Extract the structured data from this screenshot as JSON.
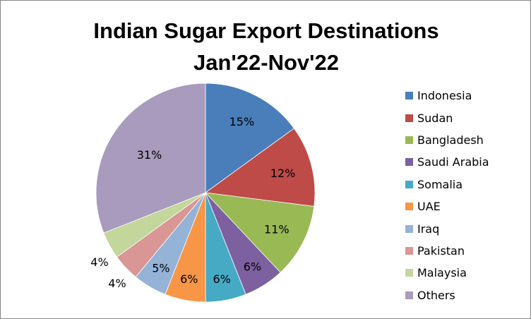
{
  "chart_data": {
    "type": "pie",
    "title": [
      "Indian Sugar Export Destinations",
      "Jan'22-Nov'22"
    ],
    "categories": [
      "Indonesia",
      "Sudan",
      "Bangladesh",
      "Saudi Arabia",
      "Somalia",
      "UAE",
      "Iraq",
      "Pakistan",
      "Malaysia",
      "Others"
    ],
    "values": [
      15,
      12,
      11,
      6,
      6,
      6,
      5,
      4,
      4,
      31
    ],
    "data_labels": [
      "15%",
      "12%",
      "11%",
      "6%",
      "6%",
      "6%",
      "5%",
      "4%",
      "4%",
      "31%"
    ],
    "colors": [
      "#4A7EBB",
      "#BE4B48",
      "#98B954",
      "#7D60A0",
      "#46AAC5",
      "#F79646",
      "#95B3D7",
      "#D99694",
      "#C3D69B",
      "#A99BBD"
    ],
    "legend_position": "right",
    "start_angle": "12 o'clock",
    "direction": "clockwise"
  }
}
